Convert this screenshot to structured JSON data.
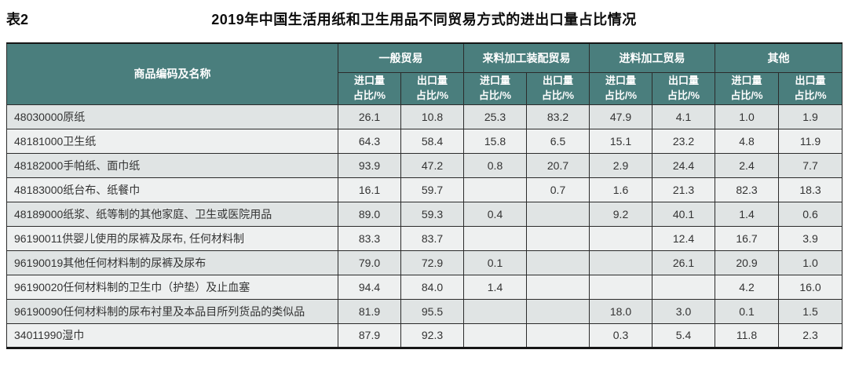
{
  "page": {
    "table_label": "表2",
    "title": "2019年中国生活用纸和卫生用品不同贸易方式的进出口量占比情况"
  },
  "colors": {
    "header_bg": "#4a7e7d",
    "header_text": "#ffffff",
    "row_odd_bg": "#e0e4e4",
    "row_even_bg": "#eef0f0",
    "border": "#2b2b2b",
    "outer_border": "#161616"
  },
  "table": {
    "first_column_header": "商品编码及名称",
    "groups": [
      "一般贸易",
      "来料加工装配贸易",
      "进料加工贸易",
      "其他"
    ],
    "sub_import": [
      "进口量",
      "占比/%"
    ],
    "sub_export": [
      "出口量",
      "占比/%"
    ],
    "rows": [
      {
        "name": "48030000原纸",
        "values": [
          "26.1",
          "10.8",
          "25.3",
          "83.2",
          "47.9",
          "4.1",
          "1.0",
          "1.9"
        ]
      },
      {
        "name": "48181000卫生纸",
        "values": [
          "64.3",
          "58.4",
          "15.8",
          "6.5",
          "15.1",
          "23.2",
          "4.8",
          "11.9"
        ]
      },
      {
        "name": "48182000手帕纸、面巾纸",
        "values": [
          "93.9",
          "47.2",
          "0.8",
          "20.7",
          "2.9",
          "24.4",
          "2.4",
          "7.7"
        ]
      },
      {
        "name": "48183000纸台布、纸餐巾",
        "values": [
          "16.1",
          "59.7",
          "",
          "0.7",
          "1.6",
          "21.3",
          "82.3",
          "18.3"
        ]
      },
      {
        "name": "48189000纸浆、纸等制的其他家庭、卫生或医院用品",
        "values": [
          "89.0",
          "59.3",
          "0.4",
          "",
          "9.2",
          "40.1",
          "1.4",
          "0.6"
        ]
      },
      {
        "name": "96190011供婴儿使用的尿裤及尿布, 任何材料制",
        "values": [
          "83.3",
          "83.7",
          "",
          "",
          "",
          "12.4",
          "16.7",
          "3.9"
        ]
      },
      {
        "name": "96190019其他任何材料制的尿裤及尿布",
        "values": [
          "79.0",
          "72.9",
          "0.1",
          "",
          "",
          "26.1",
          "20.9",
          "1.0"
        ]
      },
      {
        "name": "96190020任何材料制的卫生巾（护垫）及止血塞",
        "values": [
          "94.4",
          "84.0",
          "1.4",
          "",
          "",
          "",
          "4.2",
          "16.0"
        ]
      },
      {
        "name": "96190090任何材料制的尿布衬里及本品目所列货品的类似品",
        "values": [
          "81.9",
          "95.5",
          "",
          "",
          "18.0",
          "3.0",
          "0.1",
          "1.5"
        ]
      },
      {
        "name": "34011990湿巾",
        "values": [
          "87.9",
          "92.3",
          "",
          "",
          "0.3",
          "5.4",
          "11.8",
          "2.3"
        ]
      }
    ]
  }
}
